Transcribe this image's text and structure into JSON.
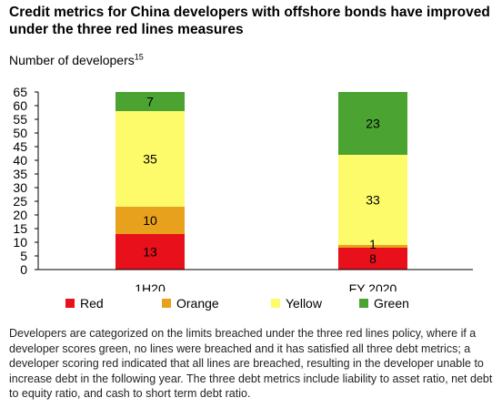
{
  "header": {
    "title": "Credit metrics for China developers with offshore bonds have improved under the three red lines measures",
    "units_text": "Number of developers",
    "units_superscript": "15"
  },
  "footnote": "Developers are categorized on the limits breached under the three red lines policy, where if a developer scores green, no lines were breached and it has satisfied all three debt metrics; a developer scoring red indicated that all lines are breached, resulting in the developer unable to increase debt in the following year. The three debt metrics include liability to asset ratio, net debt to equity ratio, and cash to short term debt ratio.",
  "chart_data": {
    "type": "bar",
    "stacked": true,
    "title": "Credit metrics for China developers with offshore bonds have improved under the three red lines measures",
    "ylabel": "Number of developers",
    "categories": [
      "1H20",
      "FY 2020"
    ],
    "ylim": [
      0,
      65
    ],
    "yticks": [
      0,
      5,
      10,
      15,
      20,
      25,
      30,
      35,
      40,
      45,
      50,
      55,
      60,
      65
    ],
    "grid": false,
    "legend_position": "bottom",
    "series": [
      {
        "name": "Red",
        "color": "#e8101b",
        "values": [
          13,
          8
        ]
      },
      {
        "name": "Orange",
        "color": "#e8a11c",
        "values": [
          10,
          1
        ]
      },
      {
        "name": "Yellow",
        "color": "#fefb6b",
        "values": [
          35,
          33
        ]
      },
      {
        "name": "Green",
        "color": "#4ba431",
        "values": [
          7,
          23
        ]
      }
    ]
  }
}
